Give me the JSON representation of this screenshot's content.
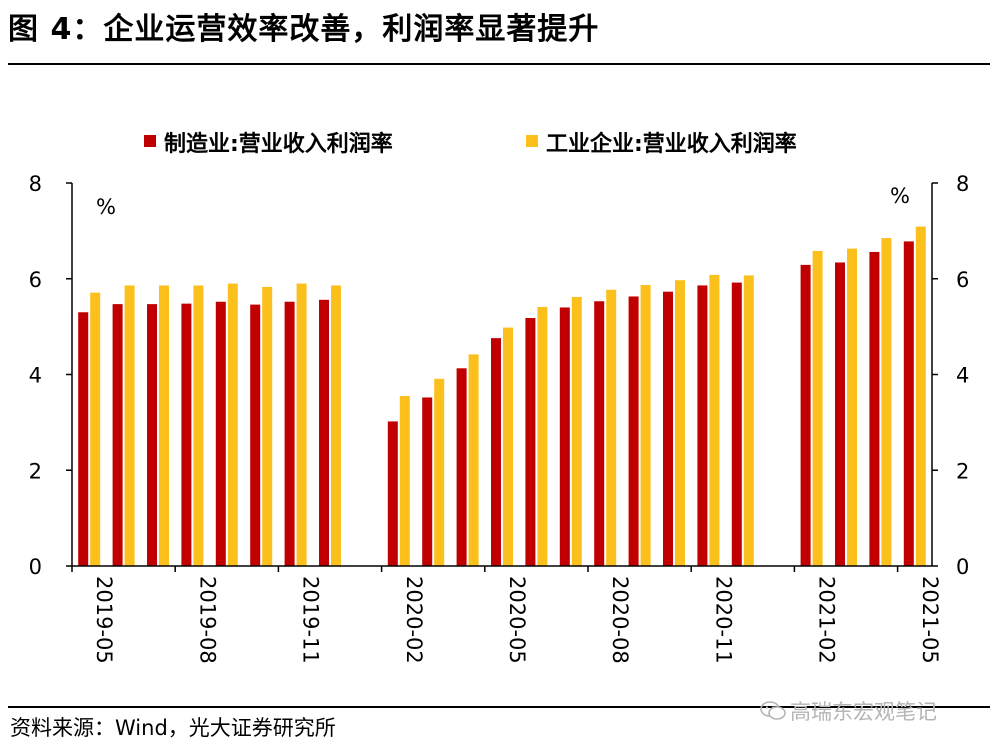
{
  "header": {
    "title": "图 4：企业运营效率改善，利润率显著提升"
  },
  "footer": {
    "source": "资料来源：Wind，光大证券研究所",
    "watermark": "高瑞东宏观笔记"
  },
  "colors": {
    "series1": "#c00000",
    "series2": "#fcc01d",
    "axis": "#000000"
  },
  "icons": {
    "watermark": "wechat-icon"
  },
  "chart_data": {
    "type": "bar",
    "categories": [
      "2019-05",
      "2019-06",
      "2019-07",
      "2019-08",
      "2019-09",
      "2019-10",
      "2019-11",
      "2019-12",
      "2020-01",
      "2020-02",
      "2020-03",
      "2020-04",
      "2020-05",
      "2020-06",
      "2020-07",
      "2020-08",
      "2020-09",
      "2020-10",
      "2020-11",
      "2020-12",
      "2021-01",
      "2021-02",
      "2021-03",
      "2021-04",
      "2021-05"
    ],
    "series": [
      {
        "name": "制造业:营业收入利润率",
        "values": [
          5.3,
          5.47,
          5.47,
          5.48,
          5.52,
          5.46,
          5.52,
          5.56,
          null,
          3.02,
          3.52,
          4.13,
          4.76,
          5.18,
          5.4,
          5.53,
          5.63,
          5.73,
          5.86,
          5.92,
          null,
          6.29,
          6.34,
          6.56,
          6.78
        ]
      },
      {
        "name": "工业企业:营业收入利润率",
        "values": [
          5.71,
          5.86,
          5.86,
          5.86,
          5.9,
          5.83,
          5.9,
          5.86,
          null,
          3.55,
          3.91,
          4.42,
          4.98,
          5.41,
          5.62,
          5.77,
          5.87,
          5.97,
          6.08,
          6.07,
          null,
          6.58,
          6.63,
          6.85,
          7.09
        ]
      }
    ],
    "x_tick_labels": [
      "2019-05",
      "2019-08",
      "2019-11",
      "2020-02",
      "2020-05",
      "2020-08",
      "2020-11",
      "2021-02",
      "2021-05"
    ],
    "y_ticks": [
      0,
      2,
      4,
      6,
      8
    ],
    "ylim": [
      0,
      8
    ],
    "y_unit_left": "%",
    "y_unit_right": "%",
    "legend": "top"
  }
}
